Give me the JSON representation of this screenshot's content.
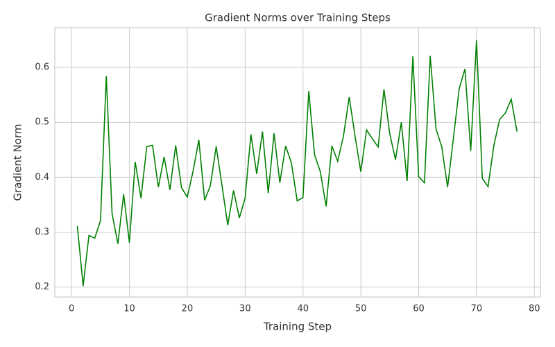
{
  "chart_data": {
    "type": "line",
    "title": "Gradient Norms over Training Steps",
    "x_label": "Training Step",
    "y_label": "Gradient Norm",
    "x": [
      1,
      2,
      3,
      4,
      5,
      6,
      7,
      8,
      9,
      10,
      11,
      12,
      13,
      14,
      15,
      16,
      17,
      18,
      19,
      20,
      21,
      22,
      23,
      24,
      25,
      26,
      27,
      28,
      29,
      30,
      31,
      32,
      33,
      34,
      35,
      36,
      37,
      38,
      39,
      40,
      41,
      42,
      43,
      44,
      45,
      46,
      47,
      48,
      49,
      50,
      51,
      52,
      53,
      54,
      55,
      56,
      57,
      58,
      59,
      60,
      61,
      62,
      63,
      64,
      65,
      66,
      67,
      68,
      69,
      70,
      71,
      72,
      73,
      74,
      75,
      76,
      77
    ],
    "series": [
      {
        "name": "Gradient Norm",
        "color": "#008000",
        "values": [
          0.311,
          0.202,
          0.294,
          0.289,
          0.321,
          0.584,
          0.334,
          0.279,
          0.369,
          0.281,
          0.428,
          0.362,
          0.456,
          0.458,
          0.382,
          0.437,
          0.377,
          0.458,
          0.381,
          0.364,
          0.411,
          0.468,
          0.358,
          0.385,
          0.456,
          0.385,
          0.313,
          0.376,
          0.326,
          0.362,
          0.478,
          0.406,
          0.483,
          0.371,
          0.48,
          0.39,
          0.457,
          0.426,
          0.357,
          0.363,
          0.557,
          0.441,
          0.41,
          0.347,
          0.457,
          0.429,
          0.475,
          0.546,
          0.475,
          0.41,
          0.486,
          0.47,
          0.455,
          0.56,
          0.479,
          0.432,
          0.5,
          0.393,
          0.62,
          0.401,
          0.39,
          0.621,
          0.488,
          0.455,
          0.382,
          0.47,
          0.561,
          0.597,
          0.448,
          0.649,
          0.398,
          0.383,
          0.458,
          0.505,
          0.517,
          0.542,
          0.483
        ]
      }
    ],
    "xlim": [
      -2.9,
      81.05
    ],
    "ylim": [
      0.182,
      0.672
    ],
    "xticks": [
      0,
      10,
      20,
      30,
      40,
      50,
      60,
      70,
      80
    ],
    "yticks": [
      0.2,
      0.3,
      0.4,
      0.5,
      0.6
    ],
    "grid": true
  }
}
